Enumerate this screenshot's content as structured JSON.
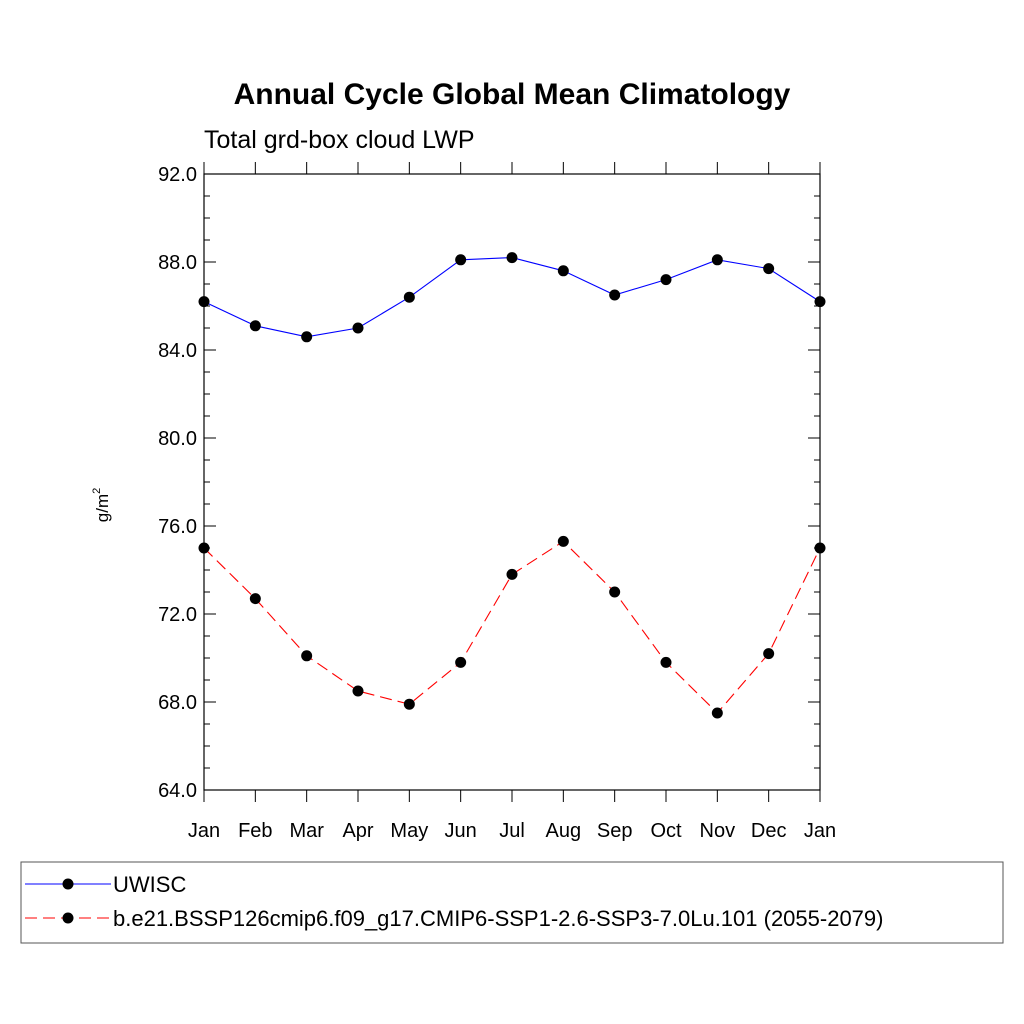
{
  "chart_data": {
    "type": "line",
    "title": "Annual Cycle Global Mean Climatology",
    "subtitle": "Total grd-box cloud LWP",
    "ylabel": "g/m",
    "ylabel_sup": "2",
    "ylim": [
      64.0,
      92.0
    ],
    "yticks": [
      "64.0",
      "68.0",
      "72.0",
      "76.0",
      "80.0",
      "84.0",
      "88.0",
      "92.0"
    ],
    "ytick_values": [
      64,
      68,
      72,
      76,
      80,
      84,
      88,
      92
    ],
    "categories": [
      "Jan",
      "Feb",
      "Mar",
      "Apr",
      "May",
      "Jun",
      "Jul",
      "Aug",
      "Sep",
      "Oct",
      "Nov",
      "Dec",
      "Jan"
    ],
    "series": [
      {
        "name": "UWISC",
        "color": "#0000ff",
        "dash": "solid",
        "values": [
          86.2,
          85.1,
          84.6,
          85.0,
          86.4,
          88.1,
          88.2,
          87.6,
          86.5,
          87.2,
          88.1,
          87.7,
          86.2
        ]
      },
      {
        "name": "b.e21.BSSP126cmip6.f09_g17.CMIP6-SSP1-2.6-SSP3-7.0Lu.101 (2055-2079)",
        "color": "#ff0000",
        "dash": "dashed",
        "values": [
          75.0,
          72.7,
          70.1,
          68.5,
          67.9,
          69.8,
          73.8,
          75.3,
          73.0,
          69.8,
          67.5,
          70.2,
          75.0
        ]
      }
    ],
    "legend_position": "bottom",
    "grid": false
  }
}
